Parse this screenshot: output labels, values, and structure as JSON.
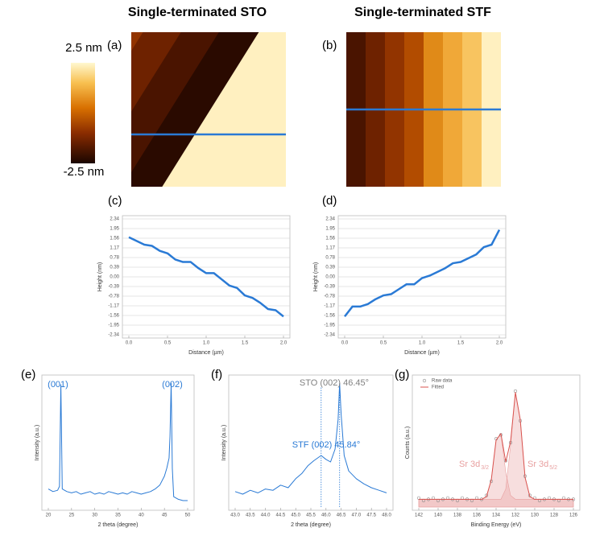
{
  "images": [
    {
      "title": "Single-terminated STO",
      "label": "(a)"
    },
    {
      "title": "Single-terminated STF",
      "label": "(b)"
    }
  ],
  "colorbar": {
    "max_label": "2.5 nm",
    "min_label": "-2.5 nm"
  },
  "chart_data": [
    {
      "type": "line",
      "label": "(c)",
      "xlabel": "Distance (µm)",
      "ylabel": "Height (nm)",
      "grid": true,
      "x": [
        0,
        0.1,
        0.2,
        0.3,
        0.4,
        0.5,
        0.6,
        0.7,
        0.8,
        0.9,
        1.0,
        1.1,
        1.2,
        1.3,
        1.4,
        1.5,
        1.6,
        1.7,
        1.8,
        1.9,
        2.0
      ],
      "xlim": [
        0,
        2
      ],
      "xticks": [
        {
          "value": 0,
          "label": "0.0"
        },
        0.5,
        {
          "value": 1,
          "label": "1.0"
        },
        1.5,
        {
          "value": 2,
          "label": "2.0"
        }
      ],
      "ylim": [
        -2.34,
        2.34
      ],
      "yticks": [
        2.34,
        1.95,
        1.56,
        1.17,
        0.78,
        0.39,
        {
          "value": 0,
          "label": "0.00"
        },
        -0.39,
        -0.78,
        -1.17,
        -1.56,
        -1.95,
        -2.34
      ],
      "series": [
        {
          "color": "#2a7ad5",
          "values": [
            1.6,
            1.45,
            1.3,
            1.25,
            1.05,
            0.95,
            0.7,
            0.6,
            0.6,
            0.35,
            0.15,
            0.15,
            -0.1,
            -0.35,
            -0.45,
            -0.75,
            -0.85,
            -1.05,
            -1.3,
            -1.35,
            -1.6
          ]
        }
      ]
    },
    {
      "type": "line",
      "label": "(d)",
      "xlabel": "Distance (µm)",
      "ylabel": "Height (nm)",
      "grid": true,
      "x": [
        0,
        0.1,
        0.2,
        0.3,
        0.4,
        0.5,
        0.6,
        0.7,
        0.8,
        0.9,
        1.0,
        1.1,
        1.2,
        1.3,
        1.4,
        1.5,
        1.6,
        1.7,
        1.8,
        1.9,
        2.0
      ],
      "xlim": [
        0,
        2
      ],
      "xticks": [
        {
          "value": 0,
          "label": "0.0"
        },
        0.5,
        {
          "value": 1,
          "label": "1.0"
        },
        1.5,
        {
          "value": 2,
          "label": "2.0"
        }
      ],
      "ylim": [
        -2.34,
        2.34
      ],
      "yticks": [
        2.34,
        1.95,
        1.56,
        1.17,
        0.78,
        0.39,
        {
          "value": 0,
          "label": "0.00"
        },
        -0.39,
        -0.78,
        -1.17,
        -1.56,
        -1.95,
        -2.34
      ],
      "series": [
        {
          "color": "#2a7ad5",
          "values": [
            -1.6,
            -1.2,
            -1.2,
            -1.1,
            -0.9,
            -0.75,
            -0.7,
            -0.5,
            -0.3,
            -0.3,
            -0.05,
            0.05,
            0.2,
            0.35,
            0.55,
            0.6,
            0.75,
            0.9,
            1.2,
            1.3,
            1.9
          ]
        }
      ]
    },
    {
      "type": "line",
      "label": "(e)",
      "xlabel": "2 theta (degree)",
      "ylabel": "Intensity (a.u.)",
      "grid": false,
      "x": [
        20,
        21,
        22,
        22.4,
        22.7,
        23,
        24,
        25,
        26,
        27,
        28,
        29,
        30,
        31,
        32,
        33,
        34,
        35,
        36,
        37,
        38,
        39,
        40,
        41,
        42,
        43,
        44,
        45,
        45.5,
        46,
        46.2,
        46.45,
        46.7,
        47,
        48,
        49,
        50
      ],
      "xlim": [
        20,
        50
      ],
      "xticks": [
        20,
        25,
        30,
        35,
        40,
        45,
        50
      ],
      "ylim": [
        0,
        100
      ],
      "annotations": [
        {
          "text": "(001)",
          "color": "#2a7ad5"
        },
        {
          "text": "(002)",
          "color": "#2a7ad5"
        }
      ],
      "series": [
        {
          "color": "#2a7ad5",
          "values": [
            14,
            12,
            13,
            16,
            95,
            14,
            12,
            11,
            12,
            10,
            11,
            12,
            10,
            11,
            10,
            12,
            11,
            10,
            11,
            10,
            12,
            11,
            10,
            11,
            12,
            14,
            17,
            24,
            30,
            38,
            55,
            96,
            30,
            8,
            6,
            5,
            5
          ]
        }
      ]
    },
    {
      "type": "line",
      "label": "(f)",
      "xlabel": "2 theta (degree)",
      "ylabel": "Intensity (a.u.)",
      "grid": false,
      "x": [
        43,
        43.25,
        43.5,
        43.75,
        44,
        44.25,
        44.5,
        44.75,
        45,
        45.2,
        45.4,
        45.6,
        45.84,
        46,
        46.15,
        46.3,
        46.4,
        46.45,
        46.5,
        46.6,
        46.75,
        47,
        47.25,
        47.5,
        47.75,
        48
      ],
      "xlim": [
        43,
        48
      ],
      "xticks": [
        {
          "value": 43,
          "label": "43.0"
        },
        43.5,
        {
          "value": 44,
          "label": "44.0"
        },
        44.5,
        {
          "value": 45,
          "label": "45.0"
        },
        45.5,
        {
          "value": 46,
          "label": "46.0"
        },
        46.5,
        {
          "value": 47,
          "label": "47.0"
        },
        47.5,
        {
          "value": 48,
          "label": "48.0"
        }
      ],
      "ylim": [
        0,
        100
      ],
      "reference_lines": [
        45.84,
        46.45
      ],
      "annotations": [
        {
          "text": "STO (002) 46.45°",
          "color": "#808080"
        },
        {
          "text": "STF (002) 45.84°",
          "color": "#2a7ad5"
        }
      ],
      "series": [
        {
          "color": "#2a7ad5",
          "values": [
            12,
            10,
            13,
            11,
            14,
            13,
            17,
            15,
            22,
            26,
            32,
            36,
            40,
            37,
            35,
            45,
            68,
            96,
            72,
            40,
            28,
            22,
            18,
            15,
            13,
            11
          ]
        }
      ]
    },
    {
      "type": "line",
      "label": "(g)",
      "xlabel": "Binding Energy (eV)",
      "ylabel": "Counts (a.u.)",
      "grid": false,
      "legend": "upper left",
      "x": [
        142,
        141.5,
        141,
        140.5,
        140,
        139.5,
        139,
        138.5,
        138,
        137.5,
        137,
        136.5,
        136,
        135.5,
        135,
        134.5,
        134,
        133.5,
        133,
        132.5,
        132,
        131.5,
        131,
        130.5,
        130,
        129.5,
        129,
        128.5,
        128,
        127.5,
        127,
        126.5,
        126
      ],
      "xlim": [
        142,
        126
      ],
      "xticks": [
        142,
        140,
        138,
        136,
        134,
        132,
        130,
        128,
        126
      ],
      "ylim": [
        0,
        100
      ],
      "components": [
        {
          "label": "Sr 3d",
          "subscript": "3/2",
          "color": "#e8a0a0",
          "values": [
            6,
            6,
            6,
            6,
            6,
            6,
            6,
            6,
            6,
            6,
            6,
            6,
            6,
            6,
            8,
            21,
            52,
            57,
            27,
            9,
            6,
            6,
            6,
            6,
            6,
            6,
            6,
            6,
            6,
            6,
            6,
            6,
            6
          ]
        },
        {
          "label": "Sr 3d",
          "subscript": "5/2",
          "color": "#e8a0a0",
          "values": [
            6,
            6,
            6,
            6,
            6,
            6,
            6,
            6,
            6,
            6,
            6,
            6,
            6,
            6,
            6,
            6,
            6,
            6,
            14,
            48,
            89,
            68,
            23,
            8,
            6,
            6,
            6,
            6,
            6,
            6,
            6,
            6,
            6
          ]
        }
      ],
      "series": [
        {
          "name": "Raw data",
          "style": "markers",
          "color": "#8a8a8a",
          "values": [
            7,
            5,
            6,
            7,
            5,
            6,
            7,
            6,
            5,
            7,
            6,
            5,
            7,
            6,
            9,
            20,
            53,
            56,
            36,
            50,
            90,
            67,
            24,
            9,
            7,
            5,
            6,
            7,
            6,
            5,
            7,
            6,
            6
          ]
        },
        {
          "name": "Fitted",
          "style": "line",
          "color": "#d9534f",
          "values": [
            6,
            6,
            6,
            6,
            6,
            6,
            6,
            6,
            6,
            6,
            6,
            6,
            6,
            6,
            8,
            21,
            52,
            57,
            35,
            51,
            89,
            68,
            23,
            8,
            6,
            6,
            6,
            6,
            6,
            6,
            6,
            6,
            6
          ]
        }
      ]
    }
  ]
}
